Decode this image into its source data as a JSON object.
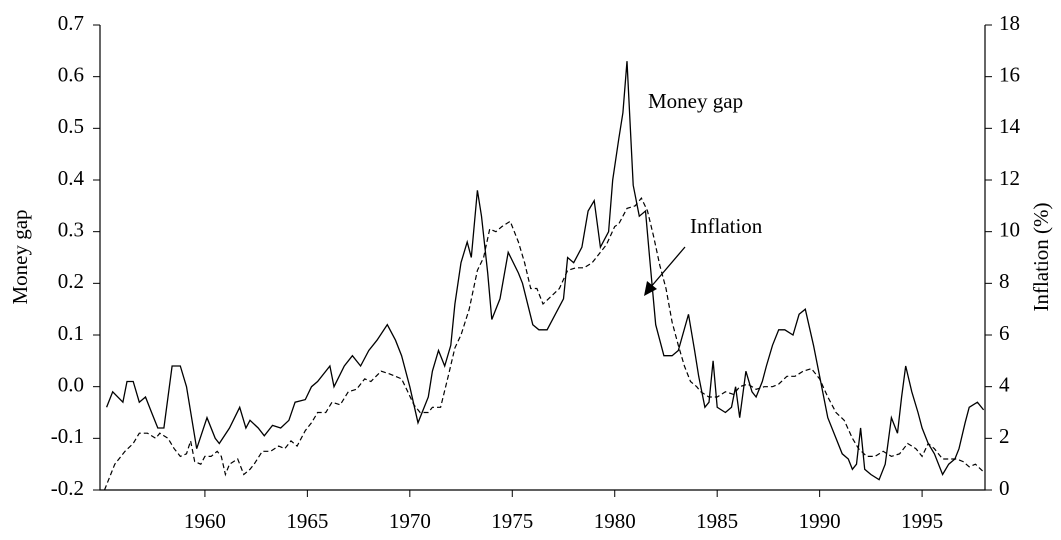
{
  "chart_data": {
    "type": "line",
    "ylabel": "Money gap",
    "y2label": "Inflation (%)",
    "annotations": [
      {
        "text": "Money gap",
        "x": 1980.6,
        "y": 0.63
      },
      {
        "text": "Inflation",
        "x": 1982.5,
        "y": 8
      }
    ],
    "xlim": [
      1954.88,
      1998.07
    ],
    "xticks": [
      1960,
      1965,
      1970,
      1975,
      1980,
      1985,
      1990,
      1995
    ],
    "ylim": [
      -0.2,
      0.7
    ],
    "yticks": [
      -0.2,
      -0.1,
      {
        "value": 0,
        "label": "0.0"
      },
      0.1,
      0.2,
      0.3,
      0.4,
      0.5,
      0.6,
      0.7
    ],
    "y2lim": [
      0,
      18
    ],
    "y2ticks": [
      0,
      2,
      4,
      6,
      8,
      10,
      12,
      14,
      16,
      18
    ],
    "series": [
      {
        "name": "Money gap",
        "color": "#000000",
        "style": "solid",
        "x": [
          1955.2,
          1955.5,
          1956.0,
          1956.2,
          1956.5,
          1956.8,
          1957.1,
          1957.4,
          1957.7,
          1958.0,
          1958.4,
          1958.8,
          1959.1,
          1959.6,
          1960.1,
          1960.5,
          1960.7,
          1961.2,
          1961.7,
          1962.0,
          1962.2,
          1962.6,
          1962.9,
          1963.3,
          1963.7,
          1964.1,
          1964.4,
          1964.9,
          1965.2,
          1965.5,
          1966.1,
          1966.3,
          1966.8,
          1967.2,
          1967.6,
          1968.0,
          1968.4,
          1968.9,
          1969.3,
          1969.6,
          1970.0,
          1970.4,
          1970.9,
          1971.1,
          1971.4,
          1971.7,
          1972.0,
          1972.2,
          1972.5,
          1972.8,
          1973.0,
          1973.3,
          1973.5,
          1973.8,
          1974.0,
          1974.4,
          1974.8,
          1975.3,
          1975.5,
          1976.0,
          1976.3,
          1976.7,
          1977.1,
          1977.5,
          1977.7,
          1978.0,
          1978.4,
          1978.7,
          1979.0,
          1979.3,
          1979.7,
          1979.9,
          1980.2,
          1980.4,
          1980.6,
          1980.9,
          1981.2,
          1981.5,
          1981.7,
          1982.0,
          1982.2,
          1982.4,
          1982.8,
          1983.1,
          1983.6,
          1983.9,
          1984.1,
          1984.4,
          1984.6,
          1984.8,
          1985.0,
          1985.4,
          1985.7,
          1985.9,
          1986.1,
          1986.4,
          1986.7,
          1986.9,
          1987.2,
          1987.4,
          1987.7,
          1988.0,
          1988.3,
          1988.7,
          1989.0,
          1989.3,
          1989.7,
          1990.1,
          1990.4,
          1990.8,
          1991.1,
          1991.4,
          1991.6,
          1991.8,
          1992.0,
          1992.2,
          1992.5,
          1992.9,
          1993.2,
          1993.5,
          1993.8,
          1994.0,
          1994.2,
          1994.5,
          1994.8,
          1995.0,
          1995.3,
          1995.6,
          1996.0,
          1996.3,
          1996.6,
          1996.8,
          1997.1,
          1997.3,
          1997.7,
          1998.0
        ],
        "values": [
          -0.04,
          -0.01,
          -0.03,
          0.01,
          0.01,
          -0.03,
          -0.02,
          -0.05,
          -0.08,
          -0.08,
          0.04,
          0.04,
          0.0,
          -0.12,
          -0.06,
          -0.1,
          -0.11,
          -0.08,
          -0.04,
          -0.08,
          -0.065,
          -0.08,
          -0.095,
          -0.075,
          -0.08,
          -0.065,
          -0.03,
          -0.025,
          0.0,
          0.01,
          0.04,
          0.0,
          0.04,
          0.06,
          0.04,
          0.07,
          0.09,
          0.12,
          0.09,
          0.06,
          0.0,
          -0.07,
          -0.02,
          0.03,
          0.07,
          0.04,
          0.08,
          0.16,
          0.24,
          0.28,
          0.25,
          0.38,
          0.33,
          0.22,
          0.13,
          0.17,
          0.26,
          0.22,
          0.2,
          0.12,
          0.11,
          0.11,
          0.14,
          0.17,
          0.25,
          0.24,
          0.27,
          0.34,
          0.36,
          0.27,
          0.3,
          0.4,
          0.48,
          0.53,
          0.63,
          0.39,
          0.33,
          0.34,
          0.25,
          0.12,
          0.09,
          0.06,
          0.06,
          0.07,
          0.14,
          0.07,
          0.02,
          -0.04,
          -0.03,
          0.05,
          -0.04,
          -0.05,
          -0.04,
          0.0,
          -0.06,
          0.03,
          -0.01,
          -0.02,
          0.01,
          0.04,
          0.08,
          0.11,
          0.11,
          0.1,
          0.14,
          0.15,
          0.08,
          0.0,
          -0.06,
          -0.1,
          -0.13,
          -0.14,
          -0.16,
          -0.15,
          -0.08,
          -0.16,
          -0.17,
          -0.18,
          -0.15,
          -0.06,
          -0.09,
          -0.02,
          0.04,
          -0.01,
          -0.05,
          -0.08,
          -0.11,
          -0.13,
          -0.17,
          -0.15,
          -0.14,
          -0.12,
          -0.07,
          -0.04,
          -0.03,
          -0.045
        ]
      },
      {
        "name": "Inflation",
        "color": "#000000",
        "style": "dashed",
        "axis": "y2",
        "x": [
          1955.1,
          1955.6,
          1956.1,
          1956.5,
          1956.8,
          1957.2,
          1957.6,
          1957.8,
          1958.2,
          1958.5,
          1958.8,
          1959.1,
          1959.3,
          1959.5,
          1959.8,
          1960.0,
          1960.3,
          1960.6,
          1960.8,
          1961.0,
          1961.2,
          1961.6,
          1961.9,
          1962.2,
          1962.4,
          1962.8,
          1963.2,
          1963.6,
          1963.9,
          1964.2,
          1964.5,
          1964.9,
          1965.2,
          1965.5,
          1965.9,
          1966.2,
          1966.6,
          1967.0,
          1967.4,
          1967.8,
          1968.1,
          1968.6,
          1969.0,
          1969.3,
          1969.6,
          1969.9,
          1970.2,
          1970.5,
          1970.9,
          1971.1,
          1971.5,
          1971.9,
          1972.2,
          1972.5,
          1972.9,
          1973.3,
          1973.6,
          1973.9,
          1974.2,
          1974.5,
          1974.9,
          1975.3,
          1975.6,
          1975.9,
          1976.2,
          1976.5,
          1976.9,
          1977.3,
          1977.7,
          1978.1,
          1978.5,
          1978.9,
          1979.3,
          1979.6,
          1980.0,
          1980.2,
          1980.6,
          1981.0,
          1981.3,
          1981.6,
          1981.9,
          1982.2,
          1982.5,
          1982.8,
          1983.1,
          1983.4,
          1983.7,
          1984.0,
          1984.2,
          1984.6,
          1985.0,
          1985.4,
          1985.8,
          1986.1,
          1986.5,
          1986.9,
          1987.3,
          1987.7,
          1988.0,
          1988.4,
          1988.8,
          1989.2,
          1989.6,
          1990.0,
          1990.4,
          1990.8,
          1991.2,
          1991.6,
          1991.9,
          1992.3,
          1992.7,
          1993.1,
          1993.5,
          1993.9,
          1994.3,
          1994.7,
          1995.0,
          1995.3,
          1995.6,
          1996.0,
          1996.4,
          1996.7,
          1997.0,
          1997.3,
          1997.6,
          1998.0
        ],
        "values": [
          0,
          1.0,
          1.5,
          1.8,
          2.2,
          2.2,
          2.0,
          2.2,
          2.0,
          1.6,
          1.3,
          1.4,
          1.9,
          1.1,
          1.0,
          1.3,
          1.3,
          1.5,
          1.3,
          0.6,
          1.0,
          1.2,
          0.6,
          0.8,
          1.0,
          1.5,
          1.5,
          1.7,
          1.6,
          1.9,
          1.7,
          2.3,
          2.6,
          3.0,
          3.0,
          3.4,
          3.3,
          3.8,
          3.9,
          4.3,
          4.2,
          4.6,
          4.5,
          4.4,
          4.3,
          3.8,
          3.3,
          3.0,
          3.0,
          3.2,
          3.2,
          4.5,
          5.5,
          6.0,
          7.0,
          8.5,
          9.0,
          10.1,
          10.0,
          10.2,
          10.4,
          9.6,
          8.8,
          7.8,
          7.8,
          7.2,
          7.5,
          7.8,
          8.5,
          8.6,
          8.6,
          8.8,
          9.2,
          9.5,
          10.2,
          10.3,
          10.9,
          11.0,
          11.3,
          10.8,
          9.8,
          8.7,
          7.8,
          6.5,
          5.6,
          4.8,
          4.2,
          4.0,
          3.8,
          3.6,
          3.6,
          3.8,
          3.7,
          4.0,
          4.1,
          3.9,
          4.0,
          4.0,
          4.1,
          4.4,
          4.4,
          4.6,
          4.7,
          4.3,
          3.6,
          3.0,
          2.7,
          2.0,
          1.6,
          1.3,
          1.3,
          1.5,
          1.3,
          1.4,
          1.8,
          1.6,
          1.3,
          1.8,
          1.6,
          1.2,
          1.2,
          1.2,
          1.1,
          0.9,
          1.0,
          0.7
        ]
      }
    ]
  }
}
